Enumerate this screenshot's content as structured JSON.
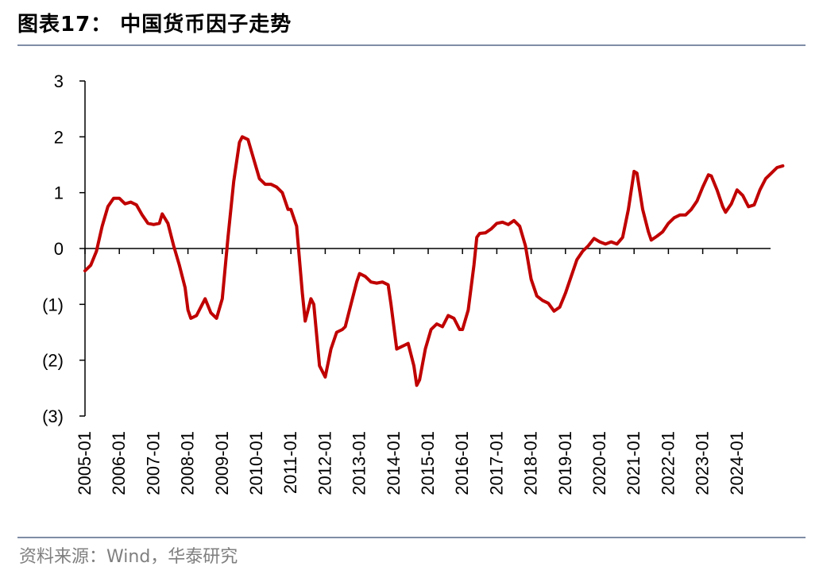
{
  "header": {
    "title": "图表17：  中国货币因子走势"
  },
  "footer": {
    "source": "资料来源：Wind，华泰研究"
  },
  "colors": {
    "line": "#c00000",
    "rule": "#7f8da6",
    "axis": "#000000"
  },
  "chart_data": {
    "type": "line",
    "title": "",
    "xlabel": "",
    "ylabel": "",
    "ylim": [
      -3,
      3
    ],
    "grid": false,
    "legend": "none",
    "y_ticks": [
      3,
      2,
      1,
      0,
      -1,
      -2,
      -3
    ],
    "y_tick_labels": [
      "3",
      "2",
      "1",
      "0",
      "(1)",
      "(2)",
      "(3)"
    ],
    "x_ticks": [
      "2005-01",
      "2006-01",
      "2007-01",
      "2008-01",
      "2009-01",
      "2010-01",
      "2011-01",
      "2012-01",
      "2013-01",
      "2014-01",
      "2015-01",
      "2016-01",
      "2017-01",
      "2018-01",
      "2019-01",
      "2020-01",
      "2021-01",
      "2022-01",
      "2023-01",
      "2024-01"
    ],
    "x_range": [
      "2005-01",
      "2024-12"
    ],
    "series": [
      {
        "name": "",
        "color": "#c00000",
        "points": [
          [
            "2005-01",
            -0.4
          ],
          [
            "2005-03",
            -0.3
          ],
          [
            "2005-05",
            -0.05
          ],
          [
            "2005-07",
            0.4
          ],
          [
            "2005-09",
            0.75
          ],
          [
            "2005-11",
            0.9
          ],
          [
            "2006-01",
            0.9
          ],
          [
            "2006-03",
            0.8
          ],
          [
            "2006-05",
            0.83
          ],
          [
            "2006-07",
            0.78
          ],
          [
            "2006-09",
            0.6
          ],
          [
            "2006-11",
            0.45
          ],
          [
            "2007-01",
            0.43
          ],
          [
            "2007-03",
            0.45
          ],
          [
            "2007-04",
            0.62
          ],
          [
            "2007-06",
            0.45
          ],
          [
            "2007-08",
            0.05
          ],
          [
            "2007-10",
            -0.3
          ],
          [
            "2007-12",
            -0.7
          ],
          [
            "2008-01",
            -1.1
          ],
          [
            "2008-02",
            -1.25
          ],
          [
            "2008-04",
            -1.2
          ],
          [
            "2008-06",
            -1.0
          ],
          [
            "2008-07",
            -0.9
          ],
          [
            "2008-09",
            -1.15
          ],
          [
            "2008-11",
            -1.25
          ],
          [
            "2009-01",
            -0.9
          ],
          [
            "2009-03",
            0.2
          ],
          [
            "2009-05",
            1.2
          ],
          [
            "2009-07",
            1.9
          ],
          [
            "2009-08",
            2.0
          ],
          [
            "2009-10",
            1.95
          ],
          [
            "2009-12",
            1.6
          ],
          [
            "2010-02",
            1.25
          ],
          [
            "2010-04",
            1.15
          ],
          [
            "2010-06",
            1.15
          ],
          [
            "2010-08",
            1.1
          ],
          [
            "2010-10",
            1.0
          ],
          [
            "2010-12",
            0.7
          ],
          [
            "2011-01",
            0.7
          ],
          [
            "2011-03",
            0.4
          ],
          [
            "2011-05",
            -0.8
          ],
          [
            "2011-06",
            -1.3
          ],
          [
            "2011-08",
            -0.9
          ],
          [
            "2011-09",
            -1.0
          ],
          [
            "2011-11",
            -2.1
          ],
          [
            "2012-01",
            -2.3
          ],
          [
            "2012-03",
            -1.8
          ],
          [
            "2012-05",
            -1.5
          ],
          [
            "2012-07",
            -1.45
          ],
          [
            "2012-08",
            -1.4
          ],
          [
            "2012-10",
            -1.0
          ],
          [
            "2012-12",
            -0.6
          ],
          [
            "2013-01",
            -0.45
          ],
          [
            "2013-03",
            -0.5
          ],
          [
            "2013-05",
            -0.6
          ],
          [
            "2013-07",
            -0.62
          ],
          [
            "2013-09",
            -0.6
          ],
          [
            "2013-11",
            -0.65
          ],
          [
            "2013-12",
            -1.0
          ],
          [
            "2014-02",
            -1.8
          ],
          [
            "2014-04",
            -1.75
          ],
          [
            "2014-06",
            -1.7
          ],
          [
            "2014-08",
            -2.1
          ],
          [
            "2014-09",
            -2.45
          ],
          [
            "2014-10",
            -2.35
          ],
          [
            "2014-12",
            -1.8
          ],
          [
            "2015-02",
            -1.45
          ],
          [
            "2015-04",
            -1.35
          ],
          [
            "2015-06",
            -1.4
          ],
          [
            "2015-08",
            -1.2
          ],
          [
            "2015-10",
            -1.25
          ],
          [
            "2015-12",
            -1.45
          ],
          [
            "2016-01",
            -1.45
          ],
          [
            "2016-03",
            -1.1
          ],
          [
            "2016-05",
            -0.3
          ],
          [
            "2016-06",
            0.2
          ],
          [
            "2016-07",
            0.27
          ],
          [
            "2016-09",
            0.28
          ],
          [
            "2016-11",
            0.35
          ],
          [
            "2017-01",
            0.45
          ],
          [
            "2017-03",
            0.47
          ],
          [
            "2017-05",
            0.43
          ],
          [
            "2017-07",
            0.5
          ],
          [
            "2017-09",
            0.4
          ],
          [
            "2017-11",
            0.05
          ],
          [
            "2018-01",
            -0.55
          ],
          [
            "2018-03",
            -0.85
          ],
          [
            "2018-05",
            -0.93
          ],
          [
            "2018-07",
            -0.98
          ],
          [
            "2018-09",
            -1.12
          ],
          [
            "2018-11",
            -1.05
          ],
          [
            "2019-01",
            -0.8
          ],
          [
            "2019-03",
            -0.5
          ],
          [
            "2019-05",
            -0.2
          ],
          [
            "2019-07",
            -0.05
          ],
          [
            "2019-09",
            0.05
          ],
          [
            "2019-11",
            0.18
          ],
          [
            "2020-01",
            0.12
          ],
          [
            "2020-03",
            0.08
          ],
          [
            "2020-05",
            0.12
          ],
          [
            "2020-07",
            0.08
          ],
          [
            "2020-09",
            0.2
          ],
          [
            "2020-11",
            0.7
          ],
          [
            "2021-01",
            1.38
          ],
          [
            "2021-02",
            1.35
          ],
          [
            "2021-04",
            0.7
          ],
          [
            "2021-06",
            0.3
          ],
          [
            "2021-07",
            0.15
          ],
          [
            "2021-09",
            0.22
          ],
          [
            "2021-11",
            0.3
          ],
          [
            "2022-01",
            0.45
          ],
          [
            "2022-03",
            0.55
          ],
          [
            "2022-05",
            0.6
          ],
          [
            "2022-07",
            0.6
          ],
          [
            "2022-09",
            0.7
          ],
          [
            "2022-11",
            0.85
          ],
          [
            "2023-01",
            1.1
          ],
          [
            "2023-03",
            1.32
          ],
          [
            "2023-04",
            1.3
          ],
          [
            "2023-06",
            1.05
          ],
          [
            "2023-08",
            0.75
          ],
          [
            "2023-09",
            0.65
          ],
          [
            "2023-11",
            0.8
          ],
          [
            "2024-01",
            1.05
          ],
          [
            "2024-03",
            0.95
          ],
          [
            "2024-05",
            0.75
          ],
          [
            "2024-07",
            0.78
          ],
          [
            "2024-09",
            1.05
          ],
          [
            "2024-11",
            1.25
          ],
          [
            "2025-01",
            1.35
          ],
          [
            "2025-03",
            1.45
          ],
          [
            "2025-05",
            1.48
          ]
        ]
      }
    ]
  }
}
